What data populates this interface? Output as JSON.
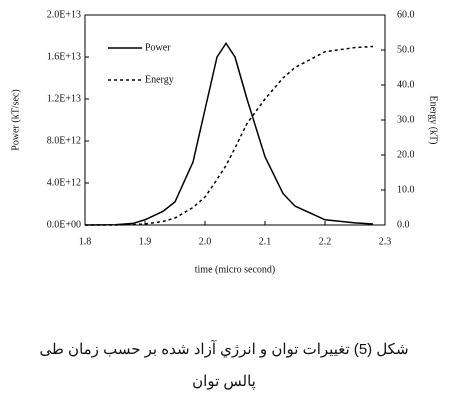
{
  "chart_data": {
    "type": "line",
    "x_label": "time (micro second)",
    "y_label": "Power (kT/sec)",
    "y2_label": "Energy (kT)",
    "x": [
      1.8,
      1.85,
      1.88,
      1.9,
      1.93,
      1.95,
      1.98,
      2.0,
      2.02,
      2.035,
      2.05,
      2.07,
      2.1,
      2.13,
      2.15,
      2.2,
      2.25,
      2.28
    ],
    "series": [
      {
        "name": "Power",
        "color": "#000000",
        "style": "solid",
        "axis": "y",
        "values": [
          0,
          20000000000.0,
          150000000000.0,
          500000000000.0,
          1300000000000.0,
          2200000000000.0,
          6000000000000.0,
          11000000000000.0,
          16000000000000.0,
          17300000000000.0,
          16000000000000.0,
          12000000000000.0,
          6500000000000.0,
          3000000000000.0,
          1800000000000.0,
          500000000000.0,
          200000000000.0,
          100000000000.0
        ]
      },
      {
        "name": "Energy",
        "color": "#000000",
        "style": "dotted",
        "axis": "y2",
        "values": [
          0,
          0,
          0.1,
          0.3,
          1,
          2,
          5,
          8,
          13,
          17,
          22,
          29,
          36,
          42,
          45,
          49.5,
          50.7,
          51
        ]
      }
    ],
    "xlim": [
      1.8,
      2.3
    ],
    "xticks": [
      1.8,
      1.9,
      {
        "value": 2,
        "label": "2.0"
      },
      2.1,
      2.2,
      2.3
    ],
    "ylim": [
      0,
      20000000000000.0
    ],
    "yticks": [
      {
        "value": 0,
        "label": "0.0E+00"
      },
      {
        "value": 4000000000000.0,
        "label": "4.0E+12"
      },
      {
        "value": 8000000000000.0,
        "label": "8.0E+12"
      },
      {
        "value": 12000000000000.0,
        "label": "1.2E+13"
      },
      {
        "value": 16000000000000.0,
        "label": "1.6E+13"
      },
      {
        "value": 20000000000000.0,
        "label": "2.0E+13"
      }
    ],
    "y2lim": [
      0,
      60
    ],
    "y2ticks": [
      {
        "value": 0,
        "label": "0.0"
      },
      {
        "value": 10,
        "label": "10.0"
      },
      {
        "value": 20,
        "label": "20.0"
      },
      {
        "value": 30,
        "label": "30.0"
      },
      {
        "value": 40,
        "label": "40.0"
      },
      {
        "value": 50,
        "label": "50.0"
      },
      {
        "value": 60,
        "label": "60.0"
      }
    ],
    "grid": false,
    "legend": "upper-left",
    "caption": [
      "شکل (5) تغییرات توان و انرژي آزاد شده بر حسب زمان طی",
      "پالس توان"
    ]
  }
}
